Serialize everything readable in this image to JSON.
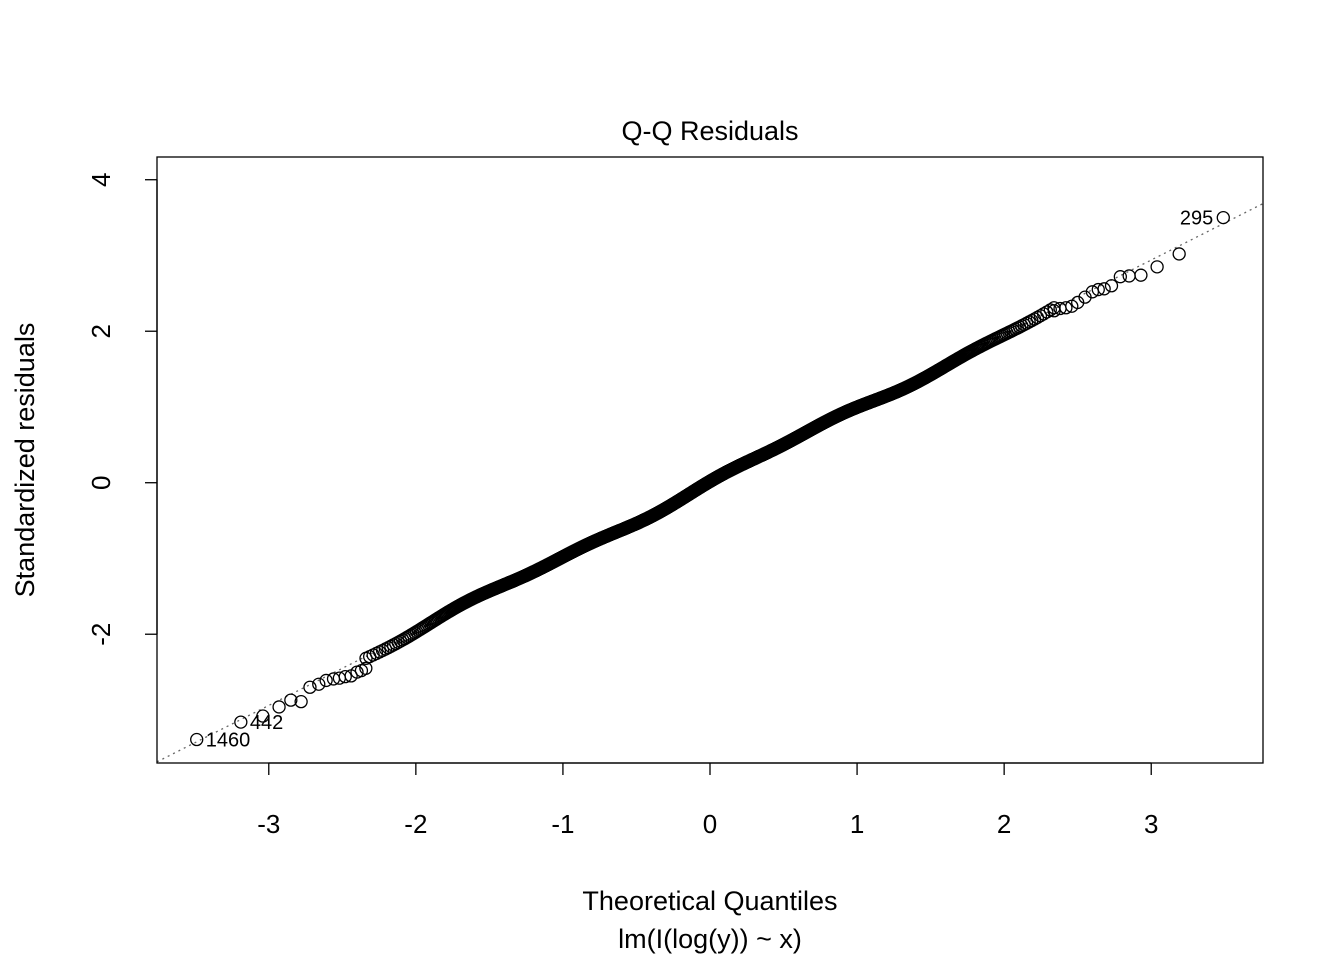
{
  "chart_data": {
    "type": "scatter",
    "title": "Q-Q Residuals",
    "xlabel": "Theoretical Quantiles",
    "xlabel_sub": "lm(I(log(y)) ~ x)",
    "ylabel": "Standardized residuals",
    "xlim": [
      -3.76,
      3.76
    ],
    "ylim": [
      -3.7,
      4.3
    ],
    "xticks": [
      -3,
      -2,
      -1,
      0,
      1,
      2,
      3
    ],
    "xtick_labels": [
      "-3",
      "-2",
      "-1",
      "0",
      "1",
      "2",
      "3"
    ],
    "yticks": [
      -2,
      0,
      2,
      4
    ],
    "ytick_labels": [
      "-2",
      "0",
      "2",
      "4"
    ],
    "reference_line": {
      "intercept": 0.0,
      "slope": 0.98,
      "style": "dotted",
      "color": "#666666"
    },
    "n_points": 1500,
    "tail_points": [
      {
        "x": -3.49,
        "y": -3.39,
        "label": "1460"
      },
      {
        "x": -3.19,
        "y": -3.16,
        "label": "442"
      },
      {
        "x": -3.04,
        "y": -3.08
      },
      {
        "x": -2.93,
        "y": -2.96
      },
      {
        "x": -2.85,
        "y": -2.87
      },
      {
        "x": -2.78,
        "y": -2.89
      },
      {
        "x": -2.72,
        "y": -2.7
      },
      {
        "x": -2.66,
        "y": -2.66
      },
      {
        "x": -2.61,
        "y": -2.61
      },
      {
        "x": -2.56,
        "y": -2.59
      },
      {
        "x": -2.52,
        "y": -2.58
      },
      {
        "x": -2.48,
        "y": -2.56
      },
      {
        "x": -2.44,
        "y": -2.55
      },
      {
        "x": -2.4,
        "y": -2.5
      },
      {
        "x": -2.37,
        "y": -2.48
      },
      {
        "x": -2.34,
        "y": -2.45
      },
      {
        "x": 2.34,
        "y": 2.27
      },
      {
        "x": 2.38,
        "y": 2.3
      },
      {
        "x": 2.42,
        "y": 2.31
      },
      {
        "x": 2.46,
        "y": 2.33
      },
      {
        "x": 2.5,
        "y": 2.38
      },
      {
        "x": 2.55,
        "y": 2.45
      },
      {
        "x": 2.6,
        "y": 2.52
      },
      {
        "x": 2.64,
        "y": 2.55
      },
      {
        "x": 2.68,
        "y": 2.56
      },
      {
        "x": 2.73,
        "y": 2.6
      },
      {
        "x": 2.79,
        "y": 2.72
      },
      {
        "x": 2.85,
        "y": 2.73
      },
      {
        "x": 2.93,
        "y": 2.74
      },
      {
        "x": 3.04,
        "y": 2.85
      },
      {
        "x": 3.19,
        "y": 3.02
      },
      {
        "x": 3.49,
        "y": 3.5,
        "label": "295"
      }
    ]
  }
}
